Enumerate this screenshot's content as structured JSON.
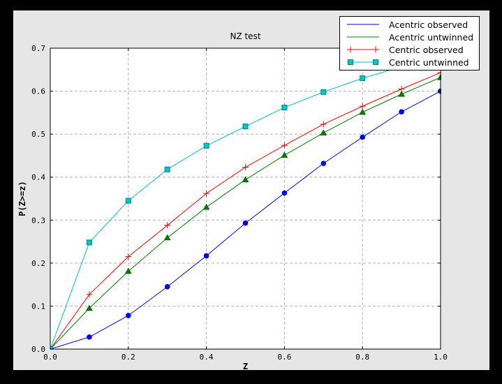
{
  "window": {
    "background": "#000000",
    "figure_background": "#e6e6e6",
    "axes_background": "#ffffff",
    "grid_color": "#b0b0b0",
    "text_color": "#000000"
  },
  "chart_data": {
    "type": "line",
    "title": "NZ test",
    "xlabel": "Z",
    "ylabel": "P(Z>=z)",
    "xlim": [
      0.0,
      1.0
    ],
    "ylim": [
      0.0,
      0.7
    ],
    "xticks": [
      0.0,
      0.2,
      0.4,
      0.6,
      0.8,
      1.0
    ],
    "yticks": [
      0.0,
      0.1,
      0.2,
      0.3,
      0.4,
      0.5,
      0.6,
      0.7
    ],
    "grid": true,
    "grid_style": "dashed",
    "legend_position": "upper right",
    "x": [
      0.0,
      0.1,
      0.2,
      0.3,
      0.4,
      0.5,
      0.6,
      0.7,
      0.8,
      0.9,
      1.0
    ],
    "series": [
      {
        "name": "Acentric observed",
        "color": "#0000ff",
        "marker": "circle",
        "marker_edge": "#0000cc",
        "legend_marker": false,
        "values": [
          0.0,
          0.028,
          0.078,
          0.145,
          0.217,
          0.293,
          0.363,
          0.432,
          0.493,
          0.552,
          0.6
        ]
      },
      {
        "name": "Acentric untwinned",
        "color": "#008000",
        "marker": "triangle",
        "marker_edge": "#005a00",
        "legend_marker": false,
        "values": [
          0.0,
          0.095,
          0.181,
          0.259,
          0.33,
          0.394,
          0.451,
          0.503,
          0.551,
          0.593,
          0.632
        ]
      },
      {
        "name": "Centric observed",
        "color": "#ff0000",
        "marker": "plus",
        "marker_edge": "#ff0000",
        "legend_marker": true,
        "values": [
          0.0,
          0.127,
          0.215,
          0.288,
          0.362,
          0.423,
          0.474,
          0.523,
          0.565,
          0.605,
          0.643
        ]
      },
      {
        "name": "Centric untwinned",
        "color": "#00bfbf",
        "marker": "square",
        "marker_edge": "#007d7d",
        "marker_fill": "#00c8c8",
        "legend_marker": true,
        "values": [
          0.0,
          0.248,
          0.345,
          0.418,
          0.473,
          0.518,
          0.562,
          0.598,
          0.63,
          0.657,
          0.683
        ]
      }
    ]
  }
}
